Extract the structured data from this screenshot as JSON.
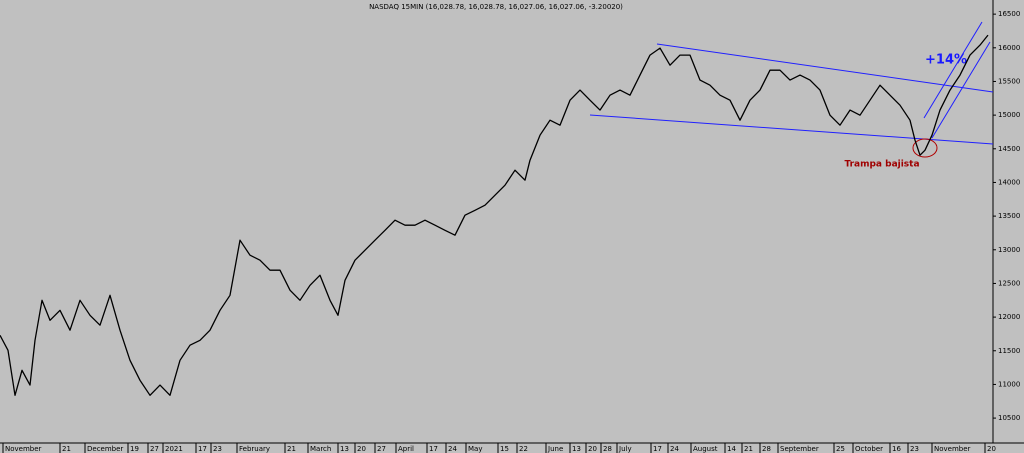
{
  "chart_data": {
    "type": "line",
    "title": "NASDAQ 15MIN (16,028.78, 16,028.78, 16,027.06, 16,027.06, -3.20020)",
    "annotations": [
      "+14%",
      "Trampa bajista"
    ],
    "color": "#000000",
    "xlim": [
      0,
      993
    ],
    "ylim": [
      10130,
      16710
    ],
    "yticks": [
      10500,
      11000,
      11500,
      12000,
      12500,
      13000,
      13500,
      14000,
      14500,
      15000,
      15500,
      16000,
      16500
    ],
    "xticks": [
      {
        "value": 3,
        "label": "November"
      },
      {
        "value": 60,
        "label": "21"
      },
      {
        "value": 85,
        "label": "December"
      },
      {
        "value": 128,
        "label": "19"
      },
      {
        "value": 148,
        "label": "27"
      },
      {
        "value": 163,
        "label": "2021"
      },
      {
        "value": 196,
        "label": "17"
      },
      {
        "value": 211,
        "label": "23"
      },
      {
        "value": 237,
        "label": "February"
      },
      {
        "value": 285,
        "label": "21"
      },
      {
        "value": 308,
        "label": "March"
      },
      {
        "value": 338,
        "label": "13"
      },
      {
        "value": 355,
        "label": "20"
      },
      {
        "value": 375,
        "label": "27"
      },
      {
        "value": 396,
        "label": "April"
      },
      {
        "value": 427,
        "label": "17"
      },
      {
        "value": 446,
        "label": "24"
      },
      {
        "value": 466,
        "label": "May"
      },
      {
        "value": 498,
        "label": "15"
      },
      {
        "value": 517,
        "label": "22"
      },
      {
        "value": 546,
        "label": "June"
      },
      {
        "value": 570,
        "label": "13"
      },
      {
        "value": 586,
        "label": "20"
      },
      {
        "value": 601,
        "label": "28"
      },
      {
        "value": 617,
        "label": "July"
      },
      {
        "value": 651,
        "label": "17"
      },
      {
        "value": 668,
        "label": "24"
      },
      {
        "value": 691,
        "label": "August"
      },
      {
        "value": 725,
        "label": "14"
      },
      {
        "value": 742,
        "label": "21"
      },
      {
        "value": 760,
        "label": "28"
      },
      {
        "value": 778,
        "label": "September"
      },
      {
        "value": 834,
        "label": "25"
      },
      {
        "value": 853,
        "label": "October"
      },
      {
        "value": 890,
        "label": "16"
      },
      {
        "value": 908,
        "label": "23"
      },
      {
        "value": 932,
        "label": "November"
      },
      {
        "value": 985,
        "label": "20"
      }
    ],
    "x": [
      0,
      8,
      15,
      22,
      30,
      35,
      42,
      50,
      60,
      70,
      80,
      90,
      100,
      110,
      120,
      130,
      140,
      150,
      160,
      170,
      180,
      190,
      200,
      210,
      220,
      230,
      240,
      250,
      260,
      270,
      280,
      290,
      300,
      310,
      320,
      330,
      338,
      345,
      355,
      365,
      375,
      385,
      395,
      405,
      415,
      425,
      435,
      445,
      455,
      465,
      475,
      485,
      495,
      505,
      515,
      525,
      530,
      540,
      550,
      560,
      570,
      580,
      590,
      600,
      610,
      620,
      630,
      640,
      650,
      660,
      670,
      680,
      690,
      700,
      710,
      720,
      730,
      740,
      750,
      760,
      770,
      780,
      790,
      800,
      810,
      820,
      830,
      840,
      850,
      860,
      870,
      880,
      890,
      900,
      910,
      915,
      920,
      925,
      932,
      940,
      950,
      960,
      970,
      980,
      988
    ],
    "values": [
      11730,
      11507,
      10838,
      11210,
      10990,
      11656,
      12250,
      11953,
      12101,
      11805,
      12250,
      12027,
      11879,
      12324,
      11805,
      11358,
      11061,
      10838,
      10990,
      10838,
      11358,
      11582,
      11656,
      11805,
      12101,
      12324,
      13142,
      12919,
      12845,
      12696,
      12696,
      12399,
      12250,
      12473,
      12622,
      12250,
      12027,
      12547,
      12845,
      12993,
      13142,
      13290,
      13439,
      13365,
      13365,
      13439,
      13365,
      13290,
      13216,
      13513,
      13587,
      13662,
      13810,
      13959,
      14182,
      14034,
      14330,
      14702,
      14925,
      14851,
      15222,
      15371,
      15222,
      15074,
      15296,
      15371,
      15296,
      15594,
      15891,
      15995,
      15742,
      15891,
      15891,
      15520,
      15445,
      15296,
      15222,
      14925,
      15222,
      15371,
      15668,
      15668,
      15520,
      15594,
      15520,
      15371,
      14999,
      14851,
      15074,
      14999,
      15222,
      15445,
      15296,
      15148,
      14925,
      14628,
      14405,
      14479,
      14702,
      15074,
      15371,
      15594,
      15891,
      16040,
      16188
    ]
  }
}
